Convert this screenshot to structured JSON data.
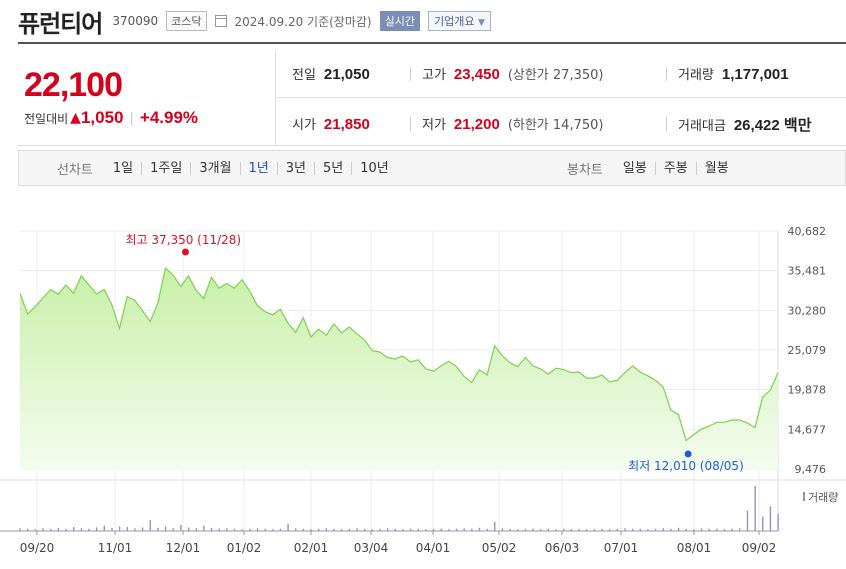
{
  "header": {
    "name": "퓨런티어",
    "code": "370090",
    "market": "코스닥",
    "date": "2024.09.20 기준(장마감)",
    "realtime_label": "실시간",
    "company_label": "기업개요"
  },
  "summary": {
    "price": "22,100",
    "change_label": "전일대비",
    "change_value": "1,050",
    "change_pct": "+4.99%",
    "prev_close_label": "전일",
    "prev_close": "21,050",
    "high_label": "고가",
    "high": "23,450",
    "upper_limit": "(상한가 27,350)",
    "volume_label": "거래량",
    "volume": "1,177,001",
    "open_label": "시가",
    "open": "21,850",
    "low_label": "저가",
    "low": "21,200",
    "lower_limit": "(하한가 14,750)",
    "amount_label": "거래대금",
    "amount": "26,422 백만"
  },
  "tabs": {
    "line_label": "선차트",
    "line_periods": [
      "1일",
      "1주일",
      "3개월",
      "1년",
      "3년",
      "5년",
      "10년"
    ],
    "active": "1년",
    "candle_label": "봉차트",
    "candle_periods": [
      "일봉",
      "주봉",
      "월봉"
    ]
  },
  "colors": {
    "line": "#7cd14a",
    "fill_top": "#c8f0a8",
    "fill_bottom": "#f4fcef",
    "high": "#e0102a",
    "low": "#1f5fd6"
  },
  "chart_data": {
    "type": "area",
    "y_ticks": [
      "40,682",
      "35,481",
      "30,280",
      "25,079",
      "19,878",
      "14,677",
      "9,476"
    ],
    "ylim": [
      9476,
      40682
    ],
    "x_ticks": [
      "09/20",
      "11/01",
      "12/01",
      "01/02",
      "02/01",
      "03/04",
      "04/01",
      "05/02",
      "06/03",
      "07/01",
      "08/01",
      "09/02"
    ],
    "high_annotation": "최고 37,350 (11/28)",
    "low_annotation": "최저 12,010 (08/05)",
    "volume_label": "거래량",
    "prices": [
      32500,
      29800,
      30800,
      31900,
      33000,
      32400,
      33600,
      32500,
      34800,
      33600,
      32400,
      33000,
      31000,
      27900,
      32100,
      31600,
      30200,
      28800,
      31200,
      35800,
      34900,
      33400,
      34800,
      32900,
      31800,
      34600,
      33200,
      33800,
      33200,
      34300,
      32800,
      30900,
      30100,
      29700,
      30400,
      28600,
      27400,
      29300,
      26800,
      27800,
      27000,
      28500,
      27300,
      28100,
      27200,
      26400,
      25000,
      24800,
      24100,
      23900,
      24300,
      23500,
      23800,
      22600,
      22300,
      23000,
      23600,
      22900,
      21600,
      20800,
      22500,
      21800,
      25600,
      24300,
      23400,
      22900,
      24100,
      23000,
      22600,
      21900,
      22700,
      22500,
      22100,
      22200,
      21400,
      21400,
      21800,
      20900,
      21100,
      22100,
      23000,
      22200,
      21700,
      21100,
      20200,
      17200,
      16600,
      13200,
      14000,
      14700,
      15100,
      15600,
      15600,
      15900,
      15900,
      15500,
      14900,
      18900,
      19800,
      22100
    ],
    "volumes": [
      0.06,
      0.05,
      0.04,
      0.06,
      0.05,
      0.07,
      0.05,
      0.09,
      0.06,
      0.05,
      0.08,
      0.12,
      0.07,
      0.1,
      0.09,
      0.06,
      0.08,
      0.24,
      0.07,
      0.1,
      0.06,
      0.14,
      0.08,
      0.06,
      0.12,
      0.07,
      0.05,
      0.06,
      0.05,
      0.04,
      0.05,
      0.06,
      0.05,
      0.04,
      0.05,
      0.16,
      0.06,
      0.05,
      0.04,
      0.05,
      0.06,
      0.05,
      0.04,
      0.05,
      0.06,
      0.05,
      0.04,
      0.05,
      0.06,
      0.05,
      0.04,
      0.05,
      0.05,
      0.04,
      0.05,
      0.05,
      0.04,
      0.05,
      0.06,
      0.05,
      0.07,
      0.05,
      0.2,
      0.06,
      0.05,
      0.04,
      0.05,
      0.05,
      0.04,
      0.05,
      0.04,
      0.05,
      0.04,
      0.05,
      0.04,
      0.04,
      0.05,
      0.04,
      0.05,
      0.06,
      0.05,
      0.05,
      0.04,
      0.05,
      0.06,
      0.05,
      0.07,
      0.05,
      0.04,
      0.06,
      0.05,
      0.05,
      0.04,
      0.05,
      0.06,
      0.45,
      1.0,
      0.32,
      0.55,
      0.38
    ]
  }
}
